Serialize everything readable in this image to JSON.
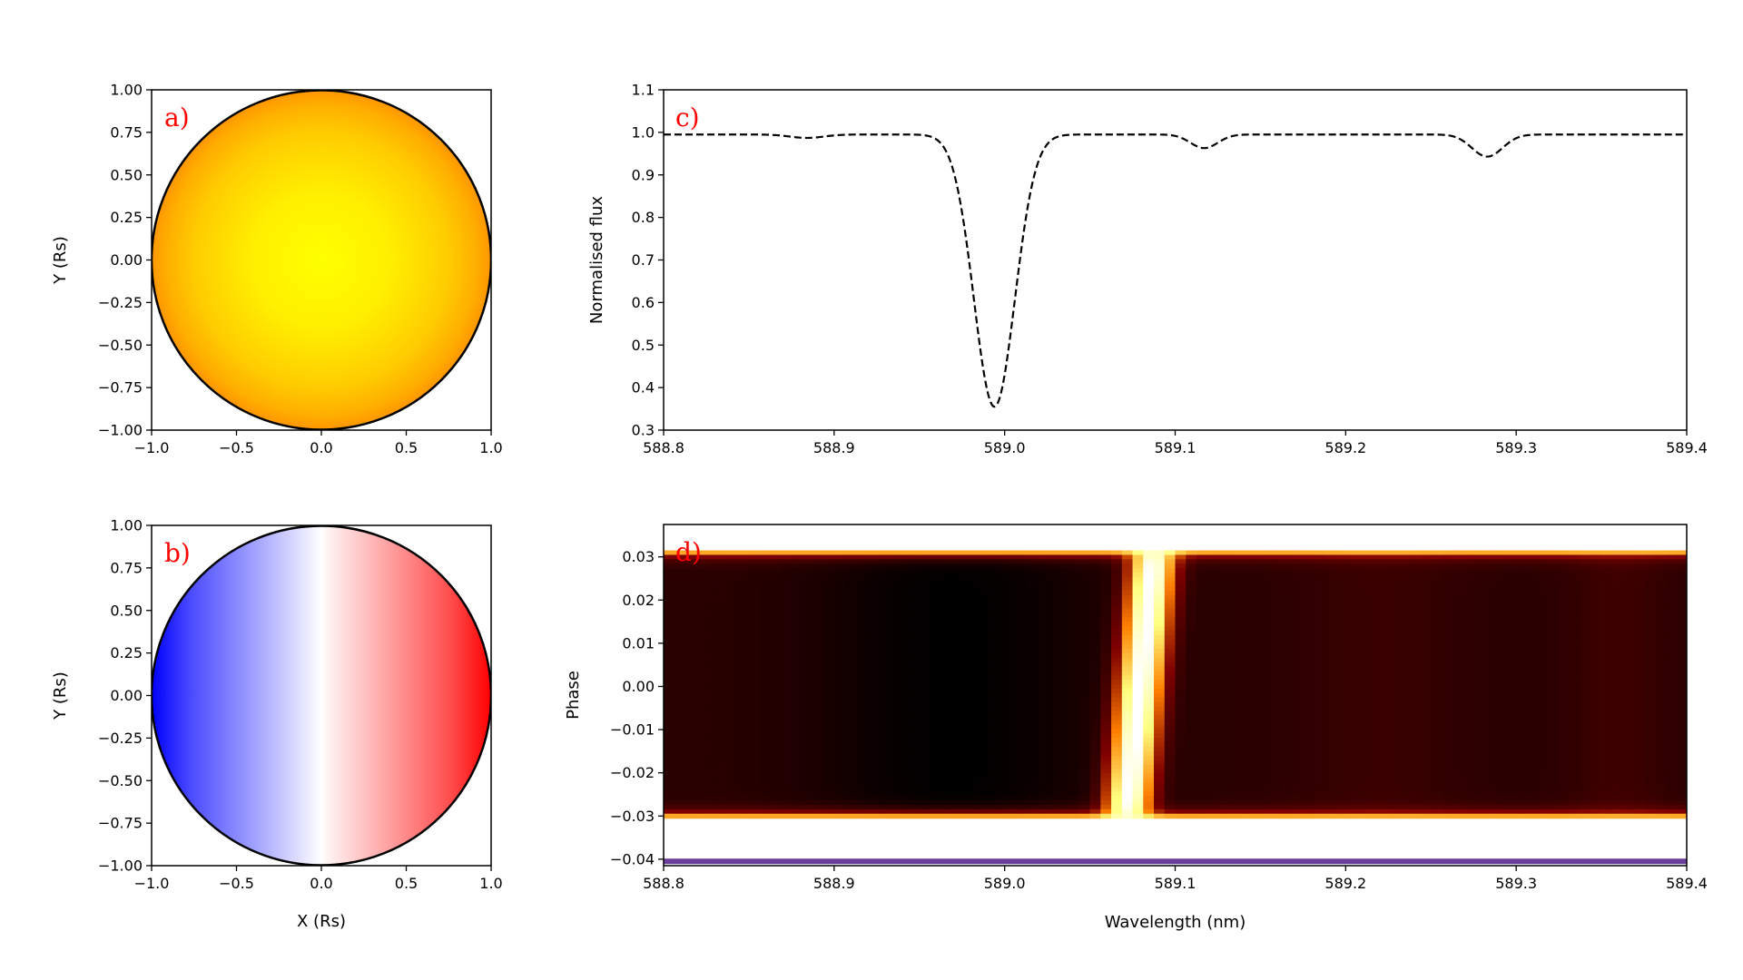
{
  "chart_data": [
    {
      "id": "a",
      "type": "heatmap",
      "panel_label": "a)",
      "title": "",
      "xlabel": "",
      "ylabel": "Y (Rs)",
      "xlim": [
        -1.0,
        1.0
      ],
      "ylim": [
        -1.0,
        1.0
      ],
      "xticks": [
        -1.0,
        -0.5,
        0.0,
        0.5,
        1.0
      ],
      "xtick_labels": [
        "−1.0",
        "−0.5",
        "0.0",
        "0.5",
        "1.0"
      ],
      "yticks": [
        1.0,
        0.75,
        0.5,
        0.25,
        0.0,
        -0.25,
        -0.5,
        -0.75,
        -1.0
      ],
      "ytick_labels": [
        "1.00",
        "0.75",
        "0.50",
        "0.25",
        "0.00",
        "−0.25",
        "−0.50",
        "−0.75",
        "−1.00"
      ],
      "disk_radius": 1.0,
      "colormap": "limb-darkened stellar disk",
      "colors": {
        "center": "#ffff00",
        "edge": "#ff9a00",
        "outline": "#000000"
      }
    },
    {
      "id": "b",
      "type": "heatmap",
      "panel_label": "b)",
      "title": "",
      "xlabel": "X (Rs)",
      "ylabel": "Y (Rs)",
      "xlim": [
        -1.0,
        1.0
      ],
      "ylim": [
        -1.0,
        1.0
      ],
      "xticks": [
        -1.0,
        -0.5,
        0.0,
        0.5,
        1.0
      ],
      "xtick_labels": [
        "−1.0",
        "−0.5",
        "0.0",
        "0.5",
        "1.0"
      ],
      "yticks": [
        1.0,
        0.75,
        0.5,
        0.25,
        0.0,
        -0.25,
        -0.5,
        -0.75,
        -1.0
      ],
      "ytick_labels": [
        "1.00",
        "0.75",
        "0.50",
        "0.25",
        "0.00",
        "−0.25",
        "−0.50",
        "−0.75",
        "−1.00"
      ],
      "disk_radius": 1.0,
      "colormap": "bwr (rotational velocity)",
      "colors": {
        "negative": "#0000ff",
        "zero": "#ffffff",
        "positive": "#ff0000",
        "outline": "#000000"
      }
    },
    {
      "id": "c",
      "type": "line",
      "panel_label": "c)",
      "title": "",
      "xlabel": "",
      "ylabel": "Normalised flux",
      "xlim": [
        588.8,
        589.4
      ],
      "ylim": [
        0.3,
        1.1
      ],
      "xticks": [
        588.8,
        588.9,
        589.0,
        589.1,
        589.2,
        589.3,
        589.4
      ],
      "xtick_labels": [
        "588.8",
        "588.9",
        "589.0",
        "589.1",
        "589.2",
        "589.3",
        "589.4"
      ],
      "yticks": [
        1.1,
        1.0,
        0.9,
        0.8,
        0.7,
        0.6,
        0.5,
        0.4,
        0.3
      ],
      "ytick_labels": [
        "1.1",
        "1.0",
        "0.9",
        "0.8",
        "0.7",
        "0.6",
        "0.5",
        "0.4",
        "0.3"
      ],
      "line_style": "dashed",
      "line_color": "#000000",
      "continuum": 0.995,
      "features": [
        {
          "center": 588.884,
          "depth": 0.008,
          "width": 0.01
        },
        {
          "center": 588.994,
          "depth": 0.64,
          "width": 0.012
        },
        {
          "center": 589.117,
          "depth": 0.032,
          "width": 0.008
        },
        {
          "center": 589.283,
          "depth": 0.052,
          "width": 0.009
        }
      ],
      "sample_points": {
        "x": [
          588.8,
          588.85,
          588.88,
          588.9,
          588.95,
          588.97,
          588.98,
          588.99,
          588.995,
          589.0,
          589.01,
          589.02,
          589.05,
          589.1,
          589.12,
          589.14,
          589.2,
          589.26,
          589.28,
          589.3,
          589.35,
          589.4
        ],
        "y": [
          0.995,
          0.995,
          0.988,
          0.995,
          0.992,
          0.96,
          0.75,
          0.45,
          0.355,
          0.42,
          0.75,
          0.97,
          0.99,
          0.993,
          0.963,
          0.995,
          0.995,
          0.99,
          0.943,
          0.99,
          0.995,
          0.995
        ]
      }
    },
    {
      "id": "d",
      "type": "heatmap",
      "panel_label": "d)",
      "title": "",
      "xlabel": "Wavelength (nm)",
      "ylabel": "Phase",
      "xlim": [
        588.8,
        589.4
      ],
      "ylim": [
        -0.0415,
        0.0375
      ],
      "xticks": [
        588.8,
        588.9,
        589.0,
        589.1,
        589.2,
        589.3,
        589.4
      ],
      "xtick_labels": [
        "588.8",
        "588.9",
        "589.0",
        "589.1",
        "589.2",
        "589.3",
        "589.4"
      ],
      "yticks": [
        0.03,
        0.02,
        0.01,
        0.0,
        -0.01,
        -0.02,
        -0.03,
        -0.04
      ],
      "ytick_labels": [
        "0.03",
        "0.02",
        "0.01",
        "0.00",
        "−0.01",
        "−0.02",
        "−0.03",
        "−0.04"
      ],
      "colormap": "afmhot",
      "transit_phase_range": [
        -0.0305,
        0.0315
      ],
      "trace": {
        "phase_top": 0.029,
        "phase_bottom": -0.029,
        "wavelength_at_top": 589.087,
        "wavelength_at_bottom": 589.072,
        "width_nm": 0.018
      },
      "bottom_band": {
        "phase": -0.0405,
        "color": "#6a3d9a"
      }
    }
  ]
}
